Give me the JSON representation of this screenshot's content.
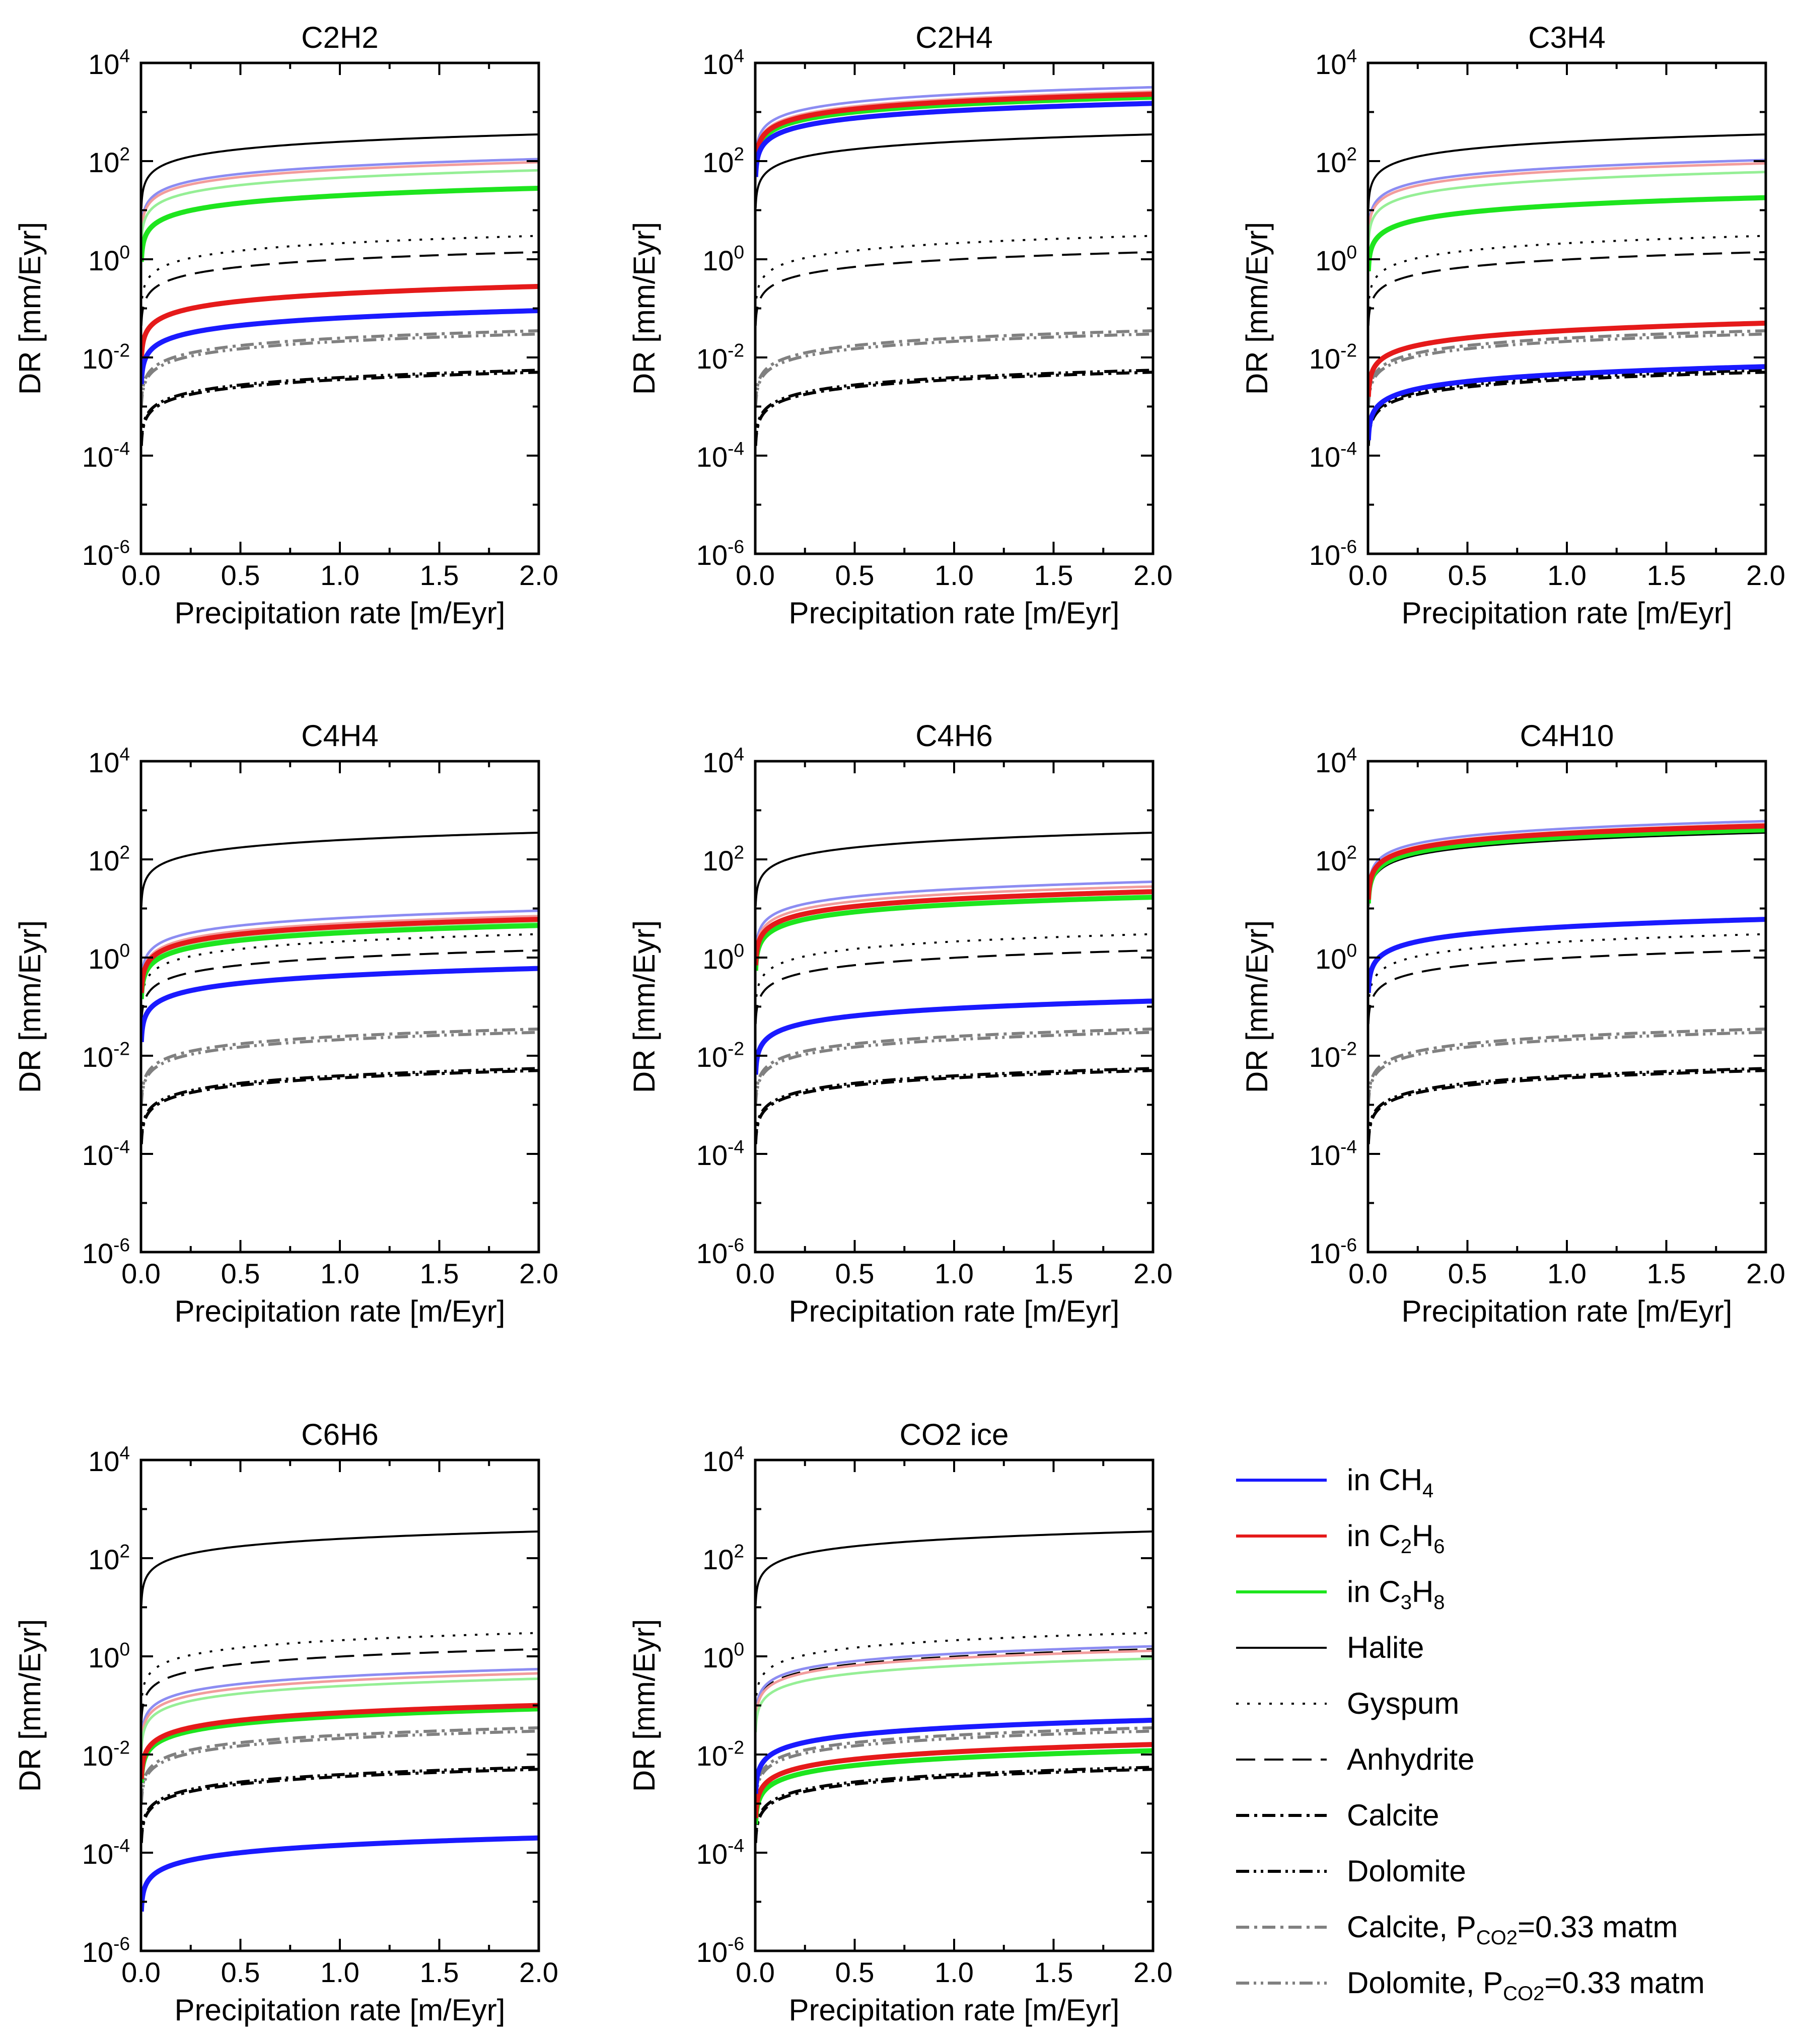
{
  "figure": {
    "xlabel": "Precipitation rate [m/Eyr]",
    "ylabel": "DR [mm/Eyr]"
  },
  "colors": {
    "ch4": "#1a1aff",
    "c2h6": "#e51a1a",
    "c3h8": "#1ee51e",
    "black": "#000000",
    "gray": "#808080",
    "light_ch4": "#8c8cf2",
    "light_c2h6": "#f29c9c",
    "light_c3h8": "#96ef96"
  },
  "legend": {
    "items": [
      {
        "base": "in CH",
        "sub": "4",
        "rest": "",
        "style": "ch4"
      },
      {
        "base": "in C",
        "sub": "2",
        "rest": "H",
        "sub2": "6",
        "style": "c2h6"
      },
      {
        "base": "in C",
        "sub": "3",
        "rest": "H",
        "sub2": "8",
        "style": "c3h8"
      },
      {
        "base": "Halite",
        "style": "halite"
      },
      {
        "base": "Gyspum",
        "style": "gypsum"
      },
      {
        "base": "Anhydrite",
        "style": "anhydrite"
      },
      {
        "base": "Calcite",
        "style": "calcite"
      },
      {
        "base": "Dolomite",
        "style": "dolomite"
      },
      {
        "base": "Calcite, P",
        "sub": "CO2",
        "rest": "=0.33 matm",
        "style": "calcite_co2"
      },
      {
        "base": "Dolomite, P",
        "sub": "CO2",
        "rest": "=0.33 matm",
        "style": "dolomite_co2"
      }
    ]
  },
  "chart_data": [
    {
      "type": "line",
      "title": "C2H2",
      "xlabel": "Precipitation rate [m/Eyr]",
      "ylabel": "DR [mm/Eyr]",
      "x_ticks": [
        "0.0",
        "0.5",
        "1.0",
        "1.5",
        "2.0"
      ],
      "y_ticks": [
        "10^-6",
        "10^-4",
        "10^-2",
        "10^0",
        "10^2",
        "10^4"
      ],
      "xlim": [
        0,
        2.0
      ],
      "ylim": [
        1e-06,
        10000.0
      ],
      "yscale": "log",
      "series": [
        {
          "name": "Halite",
          "style": "halite",
          "value_at_2": 350
        },
        {
          "name": "Gyspum",
          "style": "gypsum",
          "value_at_2": 3
        },
        {
          "name": "Anhydrite",
          "style": "anhydrite",
          "value_at_2": 1.4
        },
        {
          "name": "Calcite",
          "style": "calcite",
          "value_at_2": 0.005
        },
        {
          "name": "Dolomite",
          "style": "dolomite",
          "value_at_2": 0.0055
        },
        {
          "name": "Calcite, PCO2=0.33 matm",
          "style": "calcite_co2",
          "value_at_2": 0.035
        },
        {
          "name": "Dolomite, PCO2=0.33 matm",
          "style": "dolomite_co2",
          "value_at_2": 0.03
        },
        {
          "name": "in CH4 (light)",
          "style": "light_ch4",
          "value_at_2": 110
        },
        {
          "name": "in C2H6 (light)",
          "style": "light_c2h6",
          "value_at_2": 95
        },
        {
          "name": "in C3H8 (light)",
          "style": "light_c3h8",
          "value_at_2": 65
        },
        {
          "name": "in C3H8",
          "style": "c3h8",
          "value_at_2": 28
        },
        {
          "name": "in C2H6",
          "style": "c2h6",
          "value_at_2": 0.28
        },
        {
          "name": "in CH4",
          "style": "ch4",
          "value_at_2": 0.09
        }
      ]
    },
    {
      "type": "line",
      "title": "C2H4",
      "xlabel": "Precipitation rate [m/Eyr]",
      "ylabel": "DR [mm/Eyr]",
      "x_ticks": [
        "0.0",
        "0.5",
        "1.0",
        "1.5",
        "2.0"
      ],
      "y_ticks": [
        "10^-6",
        "10^-4",
        "10^-2",
        "10^0",
        "10^2",
        "10^4"
      ],
      "xlim": [
        0,
        2.0
      ],
      "ylim": [
        1e-06,
        10000.0
      ],
      "yscale": "log",
      "series": [
        {
          "name": "Halite",
          "style": "halite",
          "value_at_2": 350
        },
        {
          "name": "Gyspum",
          "style": "gypsum",
          "value_at_2": 3
        },
        {
          "name": "Anhydrite",
          "style": "anhydrite",
          "value_at_2": 1.4
        },
        {
          "name": "Calcite",
          "style": "calcite",
          "value_at_2": 0.005
        },
        {
          "name": "Dolomite",
          "style": "dolomite",
          "value_at_2": 0.0055
        },
        {
          "name": "Calcite, PCO2=0.33 matm",
          "style": "calcite_co2",
          "value_at_2": 0.035
        },
        {
          "name": "Dolomite, PCO2=0.33 matm",
          "style": "dolomite_co2",
          "value_at_2": 0.03
        },
        {
          "name": "in CH4 (light)",
          "style": "light_ch4",
          "value_at_2": 3200
        },
        {
          "name": "in C2H6 (light)",
          "style": "light_c2h6",
          "value_at_2": 2600
        },
        {
          "name": "in C3H8 (light)",
          "style": "light_c3h8",
          "value_at_2": 2200
        },
        {
          "name": "in C3H8",
          "style": "c3h8",
          "value_at_2": 2000
        },
        {
          "name": "in C2H6",
          "style": "c2h6",
          "value_at_2": 2300
        },
        {
          "name": "in CH4",
          "style": "ch4",
          "value_at_2": 1500
        }
      ]
    },
    {
      "type": "line",
      "title": "C3H4",
      "xlabel": "Precipitation rate [m/Eyr]",
      "ylabel": "DR [mm/Eyr]",
      "x_ticks": [
        "0.0",
        "0.5",
        "1.0",
        "1.5",
        "2.0"
      ],
      "y_ticks": [
        "10^-6",
        "10^-4",
        "10^-2",
        "10^0",
        "10^2",
        "10^4"
      ],
      "xlim": [
        0,
        2.0
      ],
      "ylim": [
        1e-06,
        10000.0
      ],
      "yscale": "log",
      "series": [
        {
          "name": "Halite",
          "style": "halite",
          "value_at_2": 350
        },
        {
          "name": "Gyspum",
          "style": "gypsum",
          "value_at_2": 3
        },
        {
          "name": "Anhydrite",
          "style": "anhydrite",
          "value_at_2": 1.4
        },
        {
          "name": "Calcite",
          "style": "calcite",
          "value_at_2": 0.005
        },
        {
          "name": "Dolomite",
          "style": "dolomite",
          "value_at_2": 0.0055
        },
        {
          "name": "Calcite, PCO2=0.33 matm",
          "style": "calcite_co2",
          "value_at_2": 0.035
        },
        {
          "name": "Dolomite, PCO2=0.33 matm",
          "style": "dolomite_co2",
          "value_at_2": 0.03
        },
        {
          "name": "in CH4 (light)",
          "style": "light_ch4",
          "value_at_2": 105
        },
        {
          "name": "in C2H6 (light)",
          "style": "light_c2h6",
          "value_at_2": 90
        },
        {
          "name": "in C3H8 (light)",
          "style": "light_c3h8",
          "value_at_2": 60
        },
        {
          "name": "in C3H8",
          "style": "c3h8",
          "value_at_2": 18
        },
        {
          "name": "in C2H6",
          "style": "c2h6",
          "value_at_2": 0.05
        },
        {
          "name": "in CH4",
          "style": "ch4",
          "value_at_2": 0.0065
        }
      ]
    },
    {
      "type": "line",
      "title": "C4H4",
      "xlabel": "Precipitation rate [m/Eyr]",
      "ylabel": "DR [mm/Eyr]",
      "x_ticks": [
        "0.0",
        "0.5",
        "1.0",
        "1.5",
        "2.0"
      ],
      "y_ticks": [
        "10^-6",
        "10^-4",
        "10^-2",
        "10^0",
        "10^2",
        "10^4"
      ],
      "xlim": [
        0,
        2.0
      ],
      "ylim": [
        1e-06,
        10000.0
      ],
      "yscale": "log",
      "series": [
        {
          "name": "Halite",
          "style": "halite",
          "value_at_2": 350
        },
        {
          "name": "Gyspum",
          "style": "gypsum",
          "value_at_2": 3
        },
        {
          "name": "Anhydrite",
          "style": "anhydrite",
          "value_at_2": 1.4
        },
        {
          "name": "Calcite",
          "style": "calcite",
          "value_at_2": 0.005
        },
        {
          "name": "Dolomite",
          "style": "dolomite",
          "value_at_2": 0.0055
        },
        {
          "name": "Calcite, PCO2=0.33 matm",
          "style": "calcite_co2",
          "value_at_2": 0.035
        },
        {
          "name": "Dolomite, PCO2=0.33 matm",
          "style": "dolomite_co2",
          "value_at_2": 0.03
        },
        {
          "name": "in CH4 (light)",
          "style": "light_ch4",
          "value_at_2": 9
        },
        {
          "name": "in C2H6 (light)",
          "style": "light_c2h6",
          "value_at_2": 7
        },
        {
          "name": "in C3H8 (light)",
          "style": "light_c3h8",
          "value_at_2": 5
        },
        {
          "name": "in C3H8",
          "style": "c3h8",
          "value_at_2": 4.5
        },
        {
          "name": "in C2H6",
          "style": "c2h6",
          "value_at_2": 6
        },
        {
          "name": "in CH4",
          "style": "ch4",
          "value_at_2": 0.6
        }
      ]
    },
    {
      "type": "line",
      "title": "C4H6",
      "xlabel": "Precipitation rate [m/Eyr]",
      "ylabel": "DR [mm/Eyr]",
      "x_ticks": [
        "0.0",
        "0.5",
        "1.0",
        "1.5",
        "2.0"
      ],
      "y_ticks": [
        "10^-6",
        "10^-4",
        "10^-2",
        "10^0",
        "10^2",
        "10^4"
      ],
      "xlim": [
        0,
        2.0
      ],
      "ylim": [
        1e-06,
        10000.0
      ],
      "yscale": "log",
      "series": [
        {
          "name": "Halite",
          "style": "halite",
          "value_at_2": 350
        },
        {
          "name": "Gyspum",
          "style": "gypsum",
          "value_at_2": 3
        },
        {
          "name": "Anhydrite",
          "style": "anhydrite",
          "value_at_2": 1.4
        },
        {
          "name": "Calcite",
          "style": "calcite",
          "value_at_2": 0.005
        },
        {
          "name": "Dolomite",
          "style": "dolomite",
          "value_at_2": 0.0055
        },
        {
          "name": "Calcite, PCO2=0.33 matm",
          "style": "calcite_co2",
          "value_at_2": 0.035
        },
        {
          "name": "Dolomite, PCO2=0.33 matm",
          "style": "dolomite_co2",
          "value_at_2": 0.03
        },
        {
          "name": "in CH4 (light)",
          "style": "light_ch4",
          "value_at_2": 35
        },
        {
          "name": "in C2H6 (light)",
          "style": "light_c2h6",
          "value_at_2": 28
        },
        {
          "name": "in C3H8 (light)",
          "style": "light_c3h8",
          "value_at_2": 22
        },
        {
          "name": "in C3H8",
          "style": "c3h8",
          "value_at_2": 17
        },
        {
          "name": "in C2H6",
          "style": "c2h6",
          "value_at_2": 22
        },
        {
          "name": "in CH4",
          "style": "ch4",
          "value_at_2": 0.13
        }
      ]
    },
    {
      "type": "line",
      "title": "C4H10",
      "xlabel": "Precipitation rate [m/Eyr]",
      "ylabel": "DR [mm/Eyr]",
      "x_ticks": [
        "0.0",
        "0.5",
        "1.0",
        "1.5",
        "2.0"
      ],
      "y_ticks": [
        "10^-6",
        "10^-4",
        "10^-2",
        "10^0",
        "10^2",
        "10^4"
      ],
      "xlim": [
        0,
        2.0
      ],
      "ylim": [
        1e-06,
        10000.0
      ],
      "yscale": "log",
      "series": [
        {
          "name": "Halite",
          "style": "halite",
          "value_at_2": 350
        },
        {
          "name": "Gyspum",
          "style": "gypsum",
          "value_at_2": 3
        },
        {
          "name": "Anhydrite",
          "style": "anhydrite",
          "value_at_2": 1.4
        },
        {
          "name": "Calcite",
          "style": "calcite",
          "value_at_2": 0.005
        },
        {
          "name": "Dolomite",
          "style": "dolomite",
          "value_at_2": 0.0055
        },
        {
          "name": "Calcite, PCO2=0.33 matm",
          "style": "calcite_co2",
          "value_at_2": 0.035
        },
        {
          "name": "Dolomite, PCO2=0.33 matm",
          "style": "dolomite_co2",
          "value_at_2": 0.03
        },
        {
          "name": "in CH4 (light)",
          "style": "light_ch4",
          "value_at_2": 600
        },
        {
          "name": "in C2H6 (light)",
          "style": "light_c2h6",
          "value_at_2": 520
        },
        {
          "name": "in C3H8 (light)",
          "style": "light_c3h8",
          "value_at_2": 450
        },
        {
          "name": "in C3H8",
          "style": "c3h8",
          "value_at_2": 400
        },
        {
          "name": "in C2H6",
          "style": "c2h6",
          "value_at_2": 480
        },
        {
          "name": "in CH4",
          "style": "ch4",
          "value_at_2": 6
        }
      ]
    },
    {
      "type": "line",
      "title": "C6H6",
      "xlabel": "Precipitation rate [m/Eyr]",
      "ylabel": "DR [mm/Eyr]",
      "x_ticks": [
        "0.0",
        "0.5",
        "1.0",
        "1.5",
        "2.0"
      ],
      "y_ticks": [
        "10^-6",
        "10^-4",
        "10^-2",
        "10^0",
        "10^2",
        "10^4"
      ],
      "xlim": [
        0,
        2.0
      ],
      "ylim": [
        1e-06,
        10000.0
      ],
      "yscale": "log",
      "series": [
        {
          "name": "Halite",
          "style": "halite",
          "value_at_2": 350
        },
        {
          "name": "Gyspum",
          "style": "gypsum",
          "value_at_2": 3
        },
        {
          "name": "Anhydrite",
          "style": "anhydrite",
          "value_at_2": 1.4
        },
        {
          "name": "Calcite",
          "style": "calcite",
          "value_at_2": 0.005
        },
        {
          "name": "Dolomite",
          "style": "dolomite",
          "value_at_2": 0.0055
        },
        {
          "name": "Calcite, PCO2=0.33 matm",
          "style": "calcite_co2",
          "value_at_2": 0.035
        },
        {
          "name": "Dolomite, PCO2=0.33 matm",
          "style": "dolomite_co2",
          "value_at_2": 0.03
        },
        {
          "name": "in CH4 (light)",
          "style": "light_ch4",
          "value_at_2": 0.55
        },
        {
          "name": "in C2H6 (light)",
          "style": "light_c2h6",
          "value_at_2": 0.45
        },
        {
          "name": "in C3H8 (light)",
          "style": "light_c3h8",
          "value_at_2": 0.35
        },
        {
          "name": "in C3H8",
          "style": "c3h8",
          "value_at_2": 0.085
        },
        {
          "name": "in C2H6",
          "style": "c2h6",
          "value_at_2": 0.1
        },
        {
          "name": "in CH4",
          "style": "ch4",
          "value_at_2": 0.0002
        }
      ]
    },
    {
      "type": "line",
      "title": "CO2 ice",
      "xlabel": "Precipitation rate [m/Eyr]",
      "ylabel": "DR [mm/Eyr]",
      "x_ticks": [
        "0.0",
        "0.5",
        "1.0",
        "1.5",
        "2.0"
      ],
      "y_ticks": [
        "10^-6",
        "10^-4",
        "10^-2",
        "10^0",
        "10^2",
        "10^4"
      ],
      "xlim": [
        0,
        2.0
      ],
      "ylim": [
        1e-06,
        10000.0
      ],
      "yscale": "log",
      "series": [
        {
          "name": "Halite",
          "style": "halite",
          "value_at_2": 350
        },
        {
          "name": "Gyspum",
          "style": "gypsum",
          "value_at_2": 3
        },
        {
          "name": "Anhydrite",
          "style": "anhydrite",
          "value_at_2": 1.4
        },
        {
          "name": "Calcite",
          "style": "calcite",
          "value_at_2": 0.005
        },
        {
          "name": "Dolomite",
          "style": "dolomite",
          "value_at_2": 0.0055
        },
        {
          "name": "Calcite, PCO2=0.33 matm",
          "style": "calcite_co2",
          "value_at_2": 0.035
        },
        {
          "name": "Dolomite, PCO2=0.33 matm",
          "style": "dolomite_co2",
          "value_at_2": 0.03
        },
        {
          "name": "in CH4 (light)",
          "style": "light_ch4",
          "value_at_2": 1.6
        },
        {
          "name": "in C2H6 (light)",
          "style": "light_c2h6",
          "value_at_2": 1.3
        },
        {
          "name": "in C3H8 (light)",
          "style": "light_c3h8",
          "value_at_2": 0.9
        },
        {
          "name": "in C3H8",
          "style": "c3h8",
          "value_at_2": 0.012
        },
        {
          "name": "in C2H6",
          "style": "c2h6",
          "value_at_2": 0.016
        },
        {
          "name": "in CH4",
          "style": "ch4",
          "value_at_2": 0.05
        }
      ]
    }
  ]
}
